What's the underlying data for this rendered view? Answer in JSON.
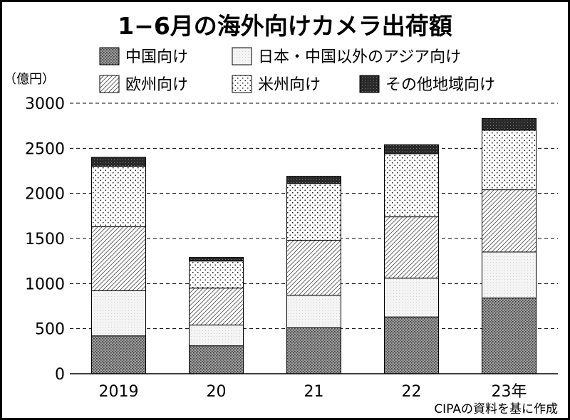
{
  "chart_data": {
    "type": "bar",
    "stacked": true,
    "title": "1−6月の海外向けカメラ出荷額",
    "ylabel": "（億円）",
    "ylim": [
      0,
      3000
    ],
    "yticks": [
      0,
      500,
      1000,
      1500,
      2000,
      2500,
      3000
    ],
    "grid": "horizontal dashed",
    "categories": [
      "2019",
      "20",
      "21",
      "22",
      "23年"
    ],
    "series": [
      {
        "name": "中国向け",
        "pattern": "dense-dots",
        "values": [
          420,
          310,
          510,
          630,
          840
        ]
      },
      {
        "name": "日本・中国以外のアジア向け",
        "pattern": "light-dots",
        "values": [
          500,
          230,
          360,
          430,
          510
        ]
      },
      {
        "name": "欧州向け",
        "pattern": "diagonal-hatch",
        "values": [
          710,
          410,
          610,
          680,
          690
        ]
      },
      {
        "name": "米州向け",
        "pattern": "sparse-dots",
        "values": [
          670,
          300,
          630,
          700,
          660
        ]
      },
      {
        "name": "その他地域向け",
        "pattern": "dark",
        "values": [
          100,
          40,
          80,
          100,
          130
        ]
      }
    ],
    "source": "CIPAの資料を基に作成"
  }
}
